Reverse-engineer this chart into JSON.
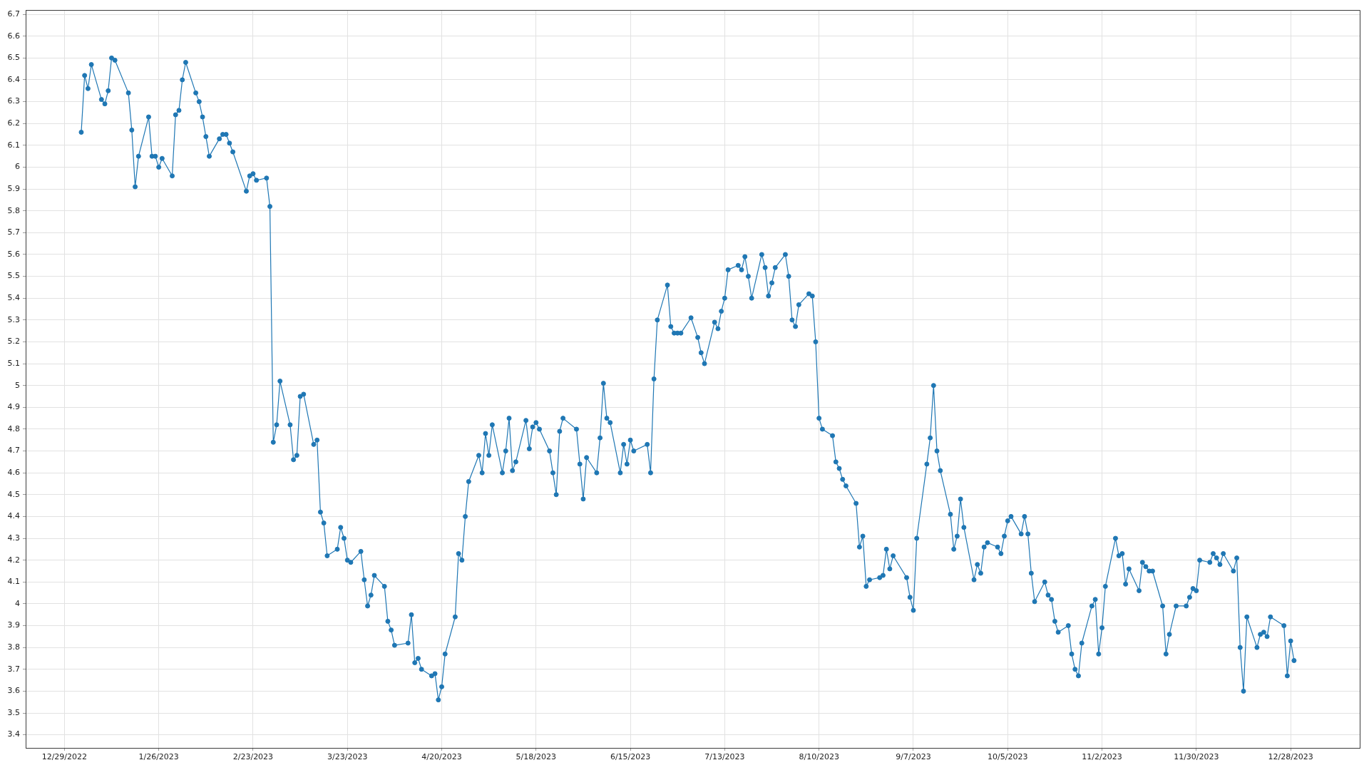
{
  "chart_data": {
    "type": "line",
    "x": [
      "2023-01-03",
      "2023-01-04",
      "2023-01-05",
      "2023-01-06",
      "2023-01-09",
      "2023-01-10",
      "2023-01-11",
      "2023-01-12",
      "2023-01-13",
      "2023-01-17",
      "2023-01-18",
      "2023-01-19",
      "2023-01-20",
      "2023-01-23",
      "2023-01-24",
      "2023-01-25",
      "2023-01-26",
      "2023-01-27",
      "2023-01-30",
      "2023-01-31",
      "2023-02-01",
      "2023-02-02",
      "2023-02-03",
      "2023-02-06",
      "2023-02-07",
      "2023-02-08",
      "2023-02-09",
      "2023-02-10",
      "2023-02-13",
      "2023-02-14",
      "2023-02-15",
      "2023-02-16",
      "2023-02-17",
      "2023-02-21",
      "2023-02-22",
      "2023-02-23",
      "2023-02-24",
      "2023-02-27",
      "2023-02-28",
      "2023-03-01",
      "2023-03-02",
      "2023-03-03",
      "2023-03-06",
      "2023-03-07",
      "2023-03-08",
      "2023-03-09",
      "2023-03-10",
      "2023-03-13",
      "2023-03-14",
      "2023-03-15",
      "2023-03-16",
      "2023-03-17",
      "2023-03-20",
      "2023-03-21",
      "2023-03-22",
      "2023-03-23",
      "2023-03-24",
      "2023-03-27",
      "2023-03-28",
      "2023-03-29",
      "2023-03-30",
      "2023-03-31",
      "2023-04-03",
      "2023-04-04",
      "2023-04-05",
      "2023-04-06",
      "2023-04-10",
      "2023-04-11",
      "2023-04-12",
      "2023-04-13",
      "2023-04-14",
      "2023-04-17",
      "2023-04-18",
      "2023-04-19",
      "2023-04-20",
      "2023-04-21",
      "2023-04-24",
      "2023-04-25",
      "2023-04-26",
      "2023-04-27",
      "2023-04-28",
      "2023-05-01",
      "2023-05-02",
      "2023-05-03",
      "2023-05-04",
      "2023-05-05",
      "2023-05-08",
      "2023-05-09",
      "2023-05-10",
      "2023-05-11",
      "2023-05-12",
      "2023-05-15",
      "2023-05-16",
      "2023-05-17",
      "2023-05-18",
      "2023-05-19",
      "2023-05-22",
      "2023-05-23",
      "2023-05-24",
      "2023-05-25",
      "2023-05-26",
      "2023-05-30",
      "2023-05-31",
      "2023-06-01",
      "2023-06-02",
      "2023-06-05",
      "2023-06-06",
      "2023-06-07",
      "2023-06-08",
      "2023-06-09",
      "2023-06-12",
      "2023-06-13",
      "2023-06-14",
      "2023-06-15",
      "2023-06-16",
      "2023-06-20",
      "2023-06-21",
      "2023-06-22",
      "2023-06-23",
      "2023-06-26",
      "2023-06-27",
      "2023-06-28",
      "2023-06-29",
      "2023-06-30",
      "2023-07-03",
      "2023-07-05",
      "2023-07-06",
      "2023-07-07",
      "2023-07-10",
      "2023-07-11",
      "2023-07-12",
      "2023-07-13",
      "2023-07-14",
      "2023-07-17",
      "2023-07-18",
      "2023-07-19",
      "2023-07-20",
      "2023-07-21",
      "2023-07-24",
      "2023-07-25",
      "2023-07-26",
      "2023-07-27",
      "2023-07-28",
      "2023-07-31",
      "2023-08-01",
      "2023-08-02",
      "2023-08-03",
      "2023-08-04",
      "2023-08-07",
      "2023-08-08",
      "2023-08-09",
      "2023-08-10",
      "2023-08-11",
      "2023-08-14",
      "2023-08-15",
      "2023-08-16",
      "2023-08-17",
      "2023-08-18",
      "2023-08-21",
      "2023-08-22",
      "2023-08-23",
      "2023-08-24",
      "2023-08-25",
      "2023-08-28",
      "2023-08-29",
      "2023-08-30",
      "2023-08-31",
      "2023-09-01",
      "2023-09-05",
      "2023-09-06",
      "2023-09-07",
      "2023-09-08",
      "2023-09-11",
      "2023-09-12",
      "2023-09-13",
      "2023-09-14",
      "2023-09-15",
      "2023-09-18",
      "2023-09-19",
      "2023-09-20",
      "2023-09-21",
      "2023-09-22",
      "2023-09-25",
      "2023-09-26",
      "2023-09-27",
      "2023-09-28",
      "2023-09-29",
      "2023-10-02",
      "2023-10-03",
      "2023-10-04",
      "2023-10-05",
      "2023-10-06",
      "2023-10-09",
      "2023-10-10",
      "2023-10-11",
      "2023-10-12",
      "2023-10-13",
      "2023-10-16",
      "2023-10-17",
      "2023-10-18",
      "2023-10-19",
      "2023-10-20",
      "2023-10-23",
      "2023-10-24",
      "2023-10-25",
      "2023-10-26",
      "2023-10-27",
      "2023-10-30",
      "2023-10-31",
      "2023-11-01",
      "2023-11-02",
      "2023-11-03",
      "2023-11-06",
      "2023-11-07",
      "2023-11-08",
      "2023-11-09",
      "2023-11-10",
      "2023-11-13",
      "2023-11-14",
      "2023-11-15",
      "2023-11-16",
      "2023-11-17",
      "2023-11-20",
      "2023-11-21",
      "2023-11-22",
      "2023-11-24",
      "2023-11-27",
      "2023-11-28",
      "2023-11-29",
      "2023-11-30",
      "2023-12-01",
      "2023-12-04",
      "2023-12-05",
      "2023-12-06",
      "2023-12-07",
      "2023-12-08",
      "2023-12-11",
      "2023-12-12",
      "2023-12-13",
      "2023-12-14",
      "2023-12-15",
      "2023-12-18",
      "2023-12-19",
      "2023-12-20",
      "2023-12-21",
      "2023-12-22",
      "2023-12-26",
      "2023-12-27",
      "2023-12-28",
      "2023-12-29"
    ],
    "values": [
      6.16,
      6.42,
      6.36,
      6.47,
      6.31,
      6.29,
      6.35,
      6.5,
      6.49,
      6.34,
      6.17,
      5.91,
      6.05,
      6.23,
      6.05,
      6.05,
      6.0,
      6.04,
      5.96,
      6.24,
      6.26,
      6.4,
      6.48,
      6.34,
      6.3,
      6.23,
      6.14,
      6.05,
      6.13,
      6.15,
      6.15,
      6.11,
      6.07,
      5.89,
      5.96,
      5.97,
      5.94,
      5.95,
      5.82,
      4.74,
      4.82,
      5.02,
      4.82,
      4.66,
      4.68,
      4.95,
      4.96,
      4.73,
      4.75,
      4.42,
      4.37,
      4.22,
      4.25,
      4.35,
      4.3,
      4.2,
      4.19,
      4.24,
      4.11,
      3.99,
      4.04,
      4.13,
      4.08,
      3.92,
      3.88,
      3.81,
      3.82,
      3.95,
      3.73,
      3.75,
      3.7,
      3.67,
      3.68,
      3.56,
      3.62,
      3.77,
      3.94,
      4.23,
      4.2,
      4.4,
      4.56,
      4.68,
      4.6,
      4.78,
      4.68,
      4.82,
      4.6,
      4.7,
      4.85,
      4.61,
      4.65,
      4.84,
      4.71,
      4.81,
      4.83,
      4.8,
      4.7,
      4.6,
      4.5,
      4.79,
      4.85,
      4.8,
      4.64,
      4.48,
      4.67,
      4.6,
      4.76,
      5.01,
      4.85,
      4.83,
      4.6,
      4.73,
      4.64,
      4.75,
      4.7,
      4.73,
      4.6,
      5.03,
      5.3,
      5.46,
      5.27,
      5.24,
      5.24,
      5.24,
      5.31,
      5.22,
      5.15,
      5.1,
      5.29,
      5.26,
      5.34,
      5.4,
      5.53,
      5.55,
      5.53,
      5.59,
      5.5,
      5.4,
      5.6,
      5.54,
      5.41,
      5.47,
      5.54,
      5.6,
      5.5,
      5.3,
      5.27,
      5.37,
      5.42,
      5.41,
      5.2,
      4.85,
      4.8,
      4.77,
      4.65,
      4.62,
      4.57,
      4.54,
      4.46,
      4.26,
      4.31,
      4.08,
      4.11,
      4.12,
      4.13,
      4.25,
      4.16,
      4.22,
      4.12,
      4.03,
      3.97,
      4.3,
      4.64,
      4.76,
      5.0,
      4.7,
      4.61,
      4.41,
      4.25,
      4.31,
      4.48,
      4.35,
      4.11,
      4.18,
      4.14,
      4.26,
      4.28,
      4.26,
      4.23,
      4.31,
      4.38,
      4.4,
      4.32,
      4.4,
      4.32,
      4.14,
      4.01,
      4.1,
      4.04,
      4.02,
      3.92,
      3.87,
      3.9,
      3.77,
      3.7,
      3.67,
      3.82,
      3.99,
      4.02,
      3.77,
      3.89,
      4.08,
      4.3,
      4.22,
      4.23,
      4.09,
      4.16,
      4.06,
      4.19,
      4.17,
      4.15,
      4.15,
      3.99,
      3.77,
      3.86,
      3.99,
      3.99,
      4.03,
      4.07,
      4.06,
      4.2,
      4.19,
      4.23,
      4.21,
      4.18,
      4.23,
      4.15,
      4.21,
      3.8,
      3.6,
      3.94,
      3.8,
      3.86,
      3.87,
      3.85,
      3.94,
      3.9,
      3.67,
      3.83,
      3.74
    ],
    "color": "#1f77b4",
    "xlim": [
      "2022-12-17T12:00",
      "2024-01-17T12:00"
    ],
    "xticks": [
      {
        "value": "2022-12-29",
        "label": "12/29/2022"
      },
      {
        "value": "2023-01-26",
        "label": "1/26/2023"
      },
      {
        "value": "2023-02-23",
        "label": "2/23/2023"
      },
      {
        "value": "2023-03-23",
        "label": "3/23/2023"
      },
      {
        "value": "2023-04-20",
        "label": "4/20/2023"
      },
      {
        "value": "2023-05-18",
        "label": "5/18/2023"
      },
      {
        "value": "2023-06-15",
        "label": "6/15/2023"
      },
      {
        "value": "2023-07-13",
        "label": "7/13/2023"
      },
      {
        "value": "2023-08-10",
        "label": "8/10/2023"
      },
      {
        "value": "2023-09-07",
        "label": "9/7/2023"
      },
      {
        "value": "2023-10-05",
        "label": "10/5/2023"
      },
      {
        "value": "2023-11-02",
        "label": "11/2/2023"
      },
      {
        "value": "2023-11-30",
        "label": "11/30/2023"
      },
      {
        "value": "2023-12-28",
        "label": "12/28/2023"
      }
    ],
    "ylim": [
      3.34,
      6.72
    ],
    "yticks": [
      3.4,
      3.5,
      3.6,
      3.7,
      3.8,
      3.9,
      4,
      4.1,
      4.2,
      4.3,
      4.4,
      4.5,
      4.6,
      4.7,
      4.8,
      4.9,
      5,
      5.1,
      5.2,
      5.3,
      5.4,
      5.5,
      5.6,
      5.7,
      5.8,
      5.9,
      6,
      6.1,
      6.2,
      6.3,
      6.4,
      6.5,
      6.6,
      6.7
    ],
    "grid": true,
    "marker": "circle",
    "line_style": "solid"
  }
}
